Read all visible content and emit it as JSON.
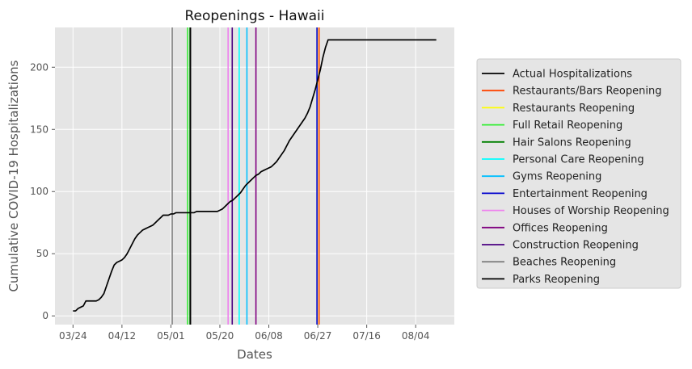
{
  "chart_data": {
    "type": "line",
    "title": "Reopenings - Hawaii",
    "xlabel": "Dates",
    "ylabel": "Cumulative COVID-19 Hospitalizations",
    "x_tick_labels": [
      "03/24",
      "04/12",
      "05/01",
      "05/20",
      "06/08",
      "06/27",
      "07/16",
      "08/04"
    ],
    "x_tick_days": [
      0,
      19,
      38,
      57,
      76,
      95,
      114,
      133
    ],
    "xlim_days": [
      -7,
      148
    ],
    "y_ticks": [
      0,
      50,
      100,
      150,
      200
    ],
    "ylim": [
      -7,
      232
    ],
    "grid": true,
    "legend_position": "right",
    "series": [
      {
        "name": "Actual Hospitalizations",
        "color": "#000000",
        "x_days": [
          0,
          1,
          2,
          3,
          4,
          5,
          6,
          7,
          8,
          9,
          10,
          11,
          12,
          13,
          14,
          15,
          16,
          17,
          18,
          19,
          20,
          21,
          22,
          23,
          24,
          25,
          26,
          27,
          28,
          29,
          30,
          31,
          32,
          33,
          34,
          35,
          36,
          37,
          38,
          39,
          40,
          41,
          42,
          43,
          44,
          45,
          46,
          47,
          48,
          49,
          50,
          51,
          52,
          53,
          54,
          55,
          56,
          57,
          58,
          59,
          60,
          61,
          62,
          63,
          64,
          65,
          66,
          67,
          68,
          69,
          70,
          71,
          72,
          73,
          74,
          75,
          76,
          77,
          78,
          79,
          80,
          81,
          82,
          83,
          84,
          85,
          86,
          87,
          88,
          89,
          90,
          91,
          92,
          93,
          94,
          95,
          96,
          97,
          98,
          99,
          100,
          101,
          102,
          103,
          104,
          105,
          106,
          107,
          108,
          109,
          110,
          111,
          112,
          113,
          114,
          115,
          116,
          117,
          118,
          119,
          120,
          121,
          122,
          123,
          124,
          125,
          126,
          127,
          128,
          129,
          130,
          131,
          132,
          133,
          134,
          135,
          136,
          137,
          138,
          139,
          140,
          141
        ],
        "values": [
          4,
          4,
          6,
          7,
          8,
          12,
          12,
          12,
          12,
          12,
          13,
          15,
          18,
          24,
          30,
          36,
          41,
          43,
          44,
          45,
          47,
          50,
          54,
          58,
          62,
          65,
          67,
          69,
          70,
          71,
          72,
          73,
          75,
          77,
          79,
          81,
          81,
          81,
          82,
          82,
          83,
          83,
          83,
          83,
          83,
          83,
          83,
          83,
          84,
          84,
          84,
          84,
          84,
          84,
          84,
          84,
          84,
          85,
          86,
          88,
          90,
          92,
          93,
          95,
          97,
          99,
          102,
          105,
          107,
          109,
          111,
          113,
          114,
          116,
          117,
          118,
          119,
          120,
          122,
          124,
          127,
          130,
          133,
          137,
          141,
          144,
          147,
          150,
          153,
          156,
          159,
          163,
          168,
          175,
          182,
          190,
          198,
          208,
          216,
          222,
          222,
          222,
          222,
          222,
          222,
          222,
          222,
          222,
          222,
          222,
          222,
          222,
          222,
          222,
          222,
          222,
          222,
          222,
          222,
          222,
          222,
          222,
          222,
          222,
          222,
          222,
          222,
          222,
          222,
          222,
          222,
          222,
          222,
          222,
          222,
          222,
          222,
          222,
          222,
          222,
          222,
          222
        ]
      }
    ],
    "reopenings": [
      {
        "name": "Restaurants/Bars Reopening",
        "day": 95.5,
        "color": "#ff4500"
      },
      {
        "name": "Restaurants Reopening",
        "day": 94.8,
        "color": "#ffff00"
      },
      {
        "name": "Full Retail Reopening",
        "day": 44.5,
        "color": "#33ee33"
      },
      {
        "name": "Hair Salons Reopening",
        "day": 45.4,
        "color": "#008000"
      },
      {
        "name": "Personal Care Reopening",
        "day": 64.5,
        "color": "#00ffff"
      },
      {
        "name": "Gyms Reopening",
        "day": 67.5,
        "color": "#00bfff"
      },
      {
        "name": "Entertainment Reopening",
        "day": 94.7,
        "color": "#0000cd"
      },
      {
        "name": "Houses of Worship Reopening",
        "day": 60.2,
        "color": "#ee82ee"
      },
      {
        "name": "Offices Reopening",
        "day": 71.0,
        "color": "#800080"
      },
      {
        "name": "Construction Reopening",
        "day": 61.8,
        "color": "#4b0082"
      },
      {
        "name": "Beaches Reopening",
        "day": 38.5,
        "color": "#808080"
      },
      {
        "name": "Parks Reopening",
        "day": 45.6,
        "color": "#000000"
      }
    ]
  }
}
